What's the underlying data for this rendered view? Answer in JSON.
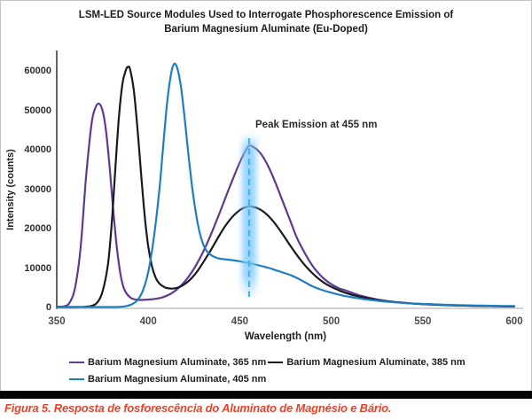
{
  "figure": {
    "title_line1": "LSM-LED Source Modules Used to Interrogate Phosphorescence Emission of",
    "title_line2": "Barium Magnesium Aluminate (Eu-Doped)",
    "caption": "Figura 5. Resposta de fosforescência do Aluminato de Magnésio e Bário."
  },
  "colors": {
    "series_365": "#5c3b8e",
    "series_385": "#191924",
    "series_405": "#1d7fc1",
    "dashed_marker": "#41b6e8",
    "glow": "#7dc8fa",
    "caption_red": "#e8422b",
    "y_axis_line": "#3c3c3c",
    "x_axis_line": "#c2c2c2"
  },
  "chart_data": {
    "type": "line",
    "title": "LSM-LED Source Modules Used to Interrogate Phosphorescence Emission of Barium Magnesium Aluminate (Eu-Doped)",
    "xlabel": "Wavelength (nm)",
    "ylabel": "Intensity (counts)",
    "xlim": [
      350,
      600
    ],
    "ylim": [
      0,
      60000
    ],
    "x_ticks": [
      350,
      400,
      450,
      500,
      550,
      600
    ],
    "y_ticks": [
      0,
      10000,
      20000,
      30000,
      40000,
      50000,
      60000
    ],
    "grid": false,
    "legend_position": "bottom",
    "annotation": {
      "text": "Peak Emission at 455 nm",
      "x_nm": 455,
      "marker_style": "dashed-vertical-line-with-glow"
    },
    "series": [
      {
        "name": "Barium Magnesium Aluminate, 365 nm",
        "color": "#5c3b8e",
        "excitation_peak": {
          "nm": 373,
          "counts": 51700
        },
        "emission_peak": {
          "nm": 455,
          "counts": 41000
        },
        "points": [
          [
            350,
            150
          ],
          [
            354,
            300
          ],
          [
            357,
            1200
          ],
          [
            360,
            5000
          ],
          [
            363,
            15000
          ],
          [
            366,
            33000
          ],
          [
            369,
            46500
          ],
          [
            371,
            50500
          ],
          [
            373,
            51700
          ],
          [
            375,
            50000
          ],
          [
            377,
            44500
          ],
          [
            379,
            35000
          ],
          [
            381,
            24000
          ],
          [
            383,
            14500
          ],
          [
            385,
            8000
          ],
          [
            387,
            4500
          ],
          [
            390,
            2600
          ],
          [
            393,
            2000
          ],
          [
            396,
            1900
          ],
          [
            400,
            2000
          ],
          [
            404,
            2200
          ],
          [
            408,
            2600
          ],
          [
            412,
            3400
          ],
          [
            416,
            4700
          ],
          [
            420,
            6600
          ],
          [
            424,
            9100
          ],
          [
            428,
            12300
          ],
          [
            432,
            16100
          ],
          [
            436,
            20500
          ],
          [
            440,
            25200
          ],
          [
            444,
            30000
          ],
          [
            448,
            34600
          ],
          [
            451,
            37800
          ],
          [
            453,
            39600
          ],
          [
            455,
            41000
          ],
          [
            457,
            40800
          ],
          [
            460,
            39800
          ],
          [
            463,
            38000
          ],
          [
            466,
            35400
          ],
          [
            469,
            32200
          ],
          [
            472,
            28700
          ],
          [
            475,
            25100
          ],
          [
            478,
            21500
          ],
          [
            481,
            17900
          ],
          [
            484,
            15100
          ],
          [
            487,
            12600
          ],
          [
            490,
            10400
          ],
          [
            493,
            8700
          ],
          [
            496,
            7300
          ],
          [
            500,
            5900
          ],
          [
            504,
            4900
          ],
          [
            508,
            4300
          ],
          [
            512,
            3600
          ],
          [
            516,
            3000
          ],
          [
            520,
            2550
          ],
          [
            525,
            2050
          ],
          [
            530,
            1650
          ],
          [
            535,
            1400
          ],
          [
            540,
            1180
          ],
          [
            546,
            960
          ],
          [
            552,
            810
          ],
          [
            558,
            690
          ],
          [
            565,
            570
          ],
          [
            572,
            480
          ],
          [
            580,
            400
          ],
          [
            588,
            340
          ],
          [
            594,
            300
          ],
          [
            600,
            270
          ]
        ]
      },
      {
        "name": "Barium Magnesium Aluminate, 385 nm",
        "color": "#191924",
        "excitation_peak": {
          "nm": 389,
          "counts": 61000
        },
        "emission_peak": {
          "nm": 456,
          "counts": 25600
        },
        "points": [
          [
            350,
            120
          ],
          [
            360,
            120
          ],
          [
            365,
            150
          ],
          [
            369,
            400
          ],
          [
            372,
            1200
          ],
          [
            375,
            4000
          ],
          [
            378,
            11000
          ],
          [
            380,
            21000
          ],
          [
            382,
            35000
          ],
          [
            384,
            48500
          ],
          [
            386,
            57000
          ],
          [
            388,
            60500
          ],
          [
            389,
            61000
          ],
          [
            390,
            60500
          ],
          [
            392,
            55500
          ],
          [
            394,
            46000
          ],
          [
            396,
            34500
          ],
          [
            398,
            23500
          ],
          [
            400,
            15500
          ],
          [
            402,
            10500
          ],
          [
            404,
            7600
          ],
          [
            406,
            6100
          ],
          [
            409,
            5100
          ],
          [
            412,
            4800
          ],
          [
            415,
            4900
          ],
          [
            418,
            5400
          ],
          [
            421,
            6300
          ],
          [
            424,
            7600
          ],
          [
            427,
            9300
          ],
          [
            430,
            11400
          ],
          [
            434,
            14400
          ],
          [
            438,
            17600
          ],
          [
            442,
            20600
          ],
          [
            446,
            23000
          ],
          [
            450,
            24700
          ],
          [
            453,
            25400
          ],
          [
            456,
            25600
          ],
          [
            459,
            25300
          ],
          [
            462,
            24600
          ],
          [
            465,
            23500
          ],
          [
            468,
            22000
          ],
          [
            471,
            20200
          ],
          [
            474,
            18200
          ],
          [
            477,
            16100
          ],
          [
            480,
            14100
          ],
          [
            483,
            12200
          ],
          [
            486,
            10500
          ],
          [
            489,
            9000
          ],
          [
            492,
            7700
          ],
          [
            495,
            6600
          ],
          [
            498,
            5700
          ],
          [
            502,
            4800
          ],
          [
            506,
            4000
          ],
          [
            510,
            3400
          ],
          [
            514,
            2900
          ],
          [
            518,
            2500
          ],
          [
            522,
            2150
          ],
          [
            527,
            1800
          ],
          [
            532,
            1500
          ],
          [
            537,
            1270
          ],
          [
            542,
            1080
          ],
          [
            548,
            900
          ],
          [
            555,
            740
          ],
          [
            562,
            620
          ],
          [
            570,
            510
          ],
          [
            578,
            420
          ],
          [
            586,
            350
          ],
          [
            593,
            300
          ],
          [
            600,
            260
          ]
        ]
      },
      {
        "name": "Barium Magnesium Aluminate, 405 nm",
        "color": "#1d7fc1",
        "excitation_peak": {
          "nm": 414,
          "counts": 61700
        },
        "emission_shoulder": {
          "nm": 455,
          "counts": 11250
        },
        "points": [
          [
            350,
            120
          ],
          [
            380,
            120
          ],
          [
            385,
            180
          ],
          [
            388,
            350
          ],
          [
            391,
            800
          ],
          [
            394,
            1800
          ],
          [
            397,
            4200
          ],
          [
            400,
            9000
          ],
          [
            403,
            17500
          ],
          [
            406,
            29500
          ],
          [
            408,
            40000
          ],
          [
            410,
            50500
          ],
          [
            412,
            58000
          ],
          [
            414,
            61700
          ],
          [
            416,
            60500
          ],
          [
            418,
            55500
          ],
          [
            420,
            47500
          ],
          [
            422,
            38500
          ],
          [
            424,
            30500
          ],
          [
            426,
            24000
          ],
          [
            428,
            19200
          ],
          [
            430,
            16100
          ],
          [
            432,
            14300
          ],
          [
            435,
            13100
          ],
          [
            438,
            12500
          ],
          [
            442,
            12200
          ],
          [
            446,
            12000
          ],
          [
            450,
            11700
          ],
          [
            454,
            11350
          ],
          [
            458,
            10950
          ],
          [
            462,
            10500
          ],
          [
            466,
            10000
          ],
          [
            470,
            9400
          ],
          [
            474,
            8800
          ],
          [
            478,
            8150
          ],
          [
            482,
            7300
          ],
          [
            486,
            6300
          ],
          [
            490,
            5300
          ],
          [
            494,
            4600
          ],
          [
            498,
            4000
          ],
          [
            502,
            3500
          ],
          [
            506,
            3050
          ],
          [
            510,
            2700
          ],
          [
            514,
            2400
          ],
          [
            518,
            2100
          ],
          [
            523,
            1820
          ],
          [
            528,
            1570
          ],
          [
            533,
            1360
          ],
          [
            538,
            1180
          ],
          [
            544,
            1020
          ],
          [
            550,
            900
          ],
          [
            557,
            780
          ],
          [
            564,
            670
          ],
          [
            572,
            570
          ],
          [
            580,
            490
          ],
          [
            588,
            430
          ],
          [
            594,
            390
          ],
          [
            600,
            350
          ]
        ]
      }
    ]
  }
}
